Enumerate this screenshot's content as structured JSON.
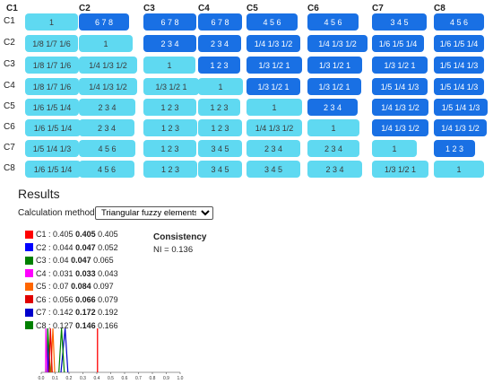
{
  "matrix": {
    "columns": [
      "C1",
      "C2",
      "C3",
      "C4",
      "C5",
      "C6",
      "C7",
      "C8"
    ],
    "rows": [
      "C1",
      "C2",
      "C3",
      "C4",
      "C5",
      "C6",
      "C7",
      "C8"
    ],
    "cells": [
      [
        {
          "t": "1",
          "s": "l"
        },
        {
          "t": "6 7 8",
          "s": "d"
        },
        {
          "t": "6 7 8",
          "s": "d"
        },
        {
          "t": "6 7 8",
          "s": "d"
        },
        {
          "t": "4 5 6",
          "s": "d"
        },
        {
          "t": "4 5 6",
          "s": "d"
        },
        {
          "t": "3 4 5",
          "s": "d"
        },
        {
          "t": "4 5 6",
          "s": "d"
        }
      ],
      [
        {
          "t": "1/8 1/7 1/6",
          "s": "l"
        },
        {
          "t": "1",
          "s": "l"
        },
        {
          "t": "2 3 4",
          "s": "d"
        },
        {
          "t": "2 3 4",
          "s": "d"
        },
        {
          "t": "1/4 1/3 1/2",
          "s": "d"
        },
        {
          "t": "1/4 1/3 1/2",
          "s": "d"
        },
        {
          "t": "1/6 1/5 1/4",
          "s": "d"
        },
        {
          "t": "1/6 1/5 1/4",
          "s": "d"
        }
      ],
      [
        {
          "t": "1/8 1/7 1/6",
          "s": "l"
        },
        {
          "t": "1/4 1/3 1/2",
          "s": "l"
        },
        {
          "t": "1",
          "s": "l"
        },
        {
          "t": "1 2 3",
          "s": "d"
        },
        {
          "t": "1/3 1/2 1",
          "s": "d"
        },
        {
          "t": "1/3 1/2 1",
          "s": "d"
        },
        {
          "t": "1/3 1/2 1",
          "s": "d"
        },
        {
          "t": "1/5 1/4 1/3",
          "s": "d"
        }
      ],
      [
        {
          "t": "1/8 1/7 1/6",
          "s": "l"
        },
        {
          "t": "1/4 1/3 1/2",
          "s": "l"
        },
        {
          "t": "1/3 1/2 1",
          "s": "l"
        },
        {
          "t": "1",
          "s": "l"
        },
        {
          "t": "1/3 1/2 1",
          "s": "d"
        },
        {
          "t": "1/3 1/2 1",
          "s": "d"
        },
        {
          "t": "1/5 1/4 1/3",
          "s": "d"
        },
        {
          "t": "1/5 1/4 1/3",
          "s": "d"
        }
      ],
      [
        {
          "t": "1/6 1/5 1/4",
          "s": "l"
        },
        {
          "t": "2 3 4",
          "s": "l"
        },
        {
          "t": "1 2 3",
          "s": "l"
        },
        {
          "t": "1 2 3",
          "s": "l"
        },
        {
          "t": "1",
          "s": "l"
        },
        {
          "t": "2 3 4",
          "s": "d"
        },
        {
          "t": "1/4 1/3 1/2",
          "s": "d"
        },
        {
          "t": "1/5 1/4 1/3",
          "s": "d"
        }
      ],
      [
        {
          "t": "1/6 1/5 1/4",
          "s": "l"
        },
        {
          "t": "2 3 4",
          "s": "l"
        },
        {
          "t": "1 2 3",
          "s": "l"
        },
        {
          "t": "1 2 3",
          "s": "l"
        },
        {
          "t": "1/4 1/3 1/2",
          "s": "l"
        },
        {
          "t": "1",
          "s": "l"
        },
        {
          "t": "1/4 1/3 1/2",
          "s": "d"
        },
        {
          "t": "1/4 1/3 1/2",
          "s": "d"
        }
      ],
      [
        {
          "t": "1/5 1/4 1/3",
          "s": "l"
        },
        {
          "t": "4 5 6",
          "s": "l"
        },
        {
          "t": "1 2 3",
          "s": "l"
        },
        {
          "t": "3 4 5",
          "s": "l"
        },
        {
          "t": "2 3 4",
          "s": "l"
        },
        {
          "t": "2 3 4",
          "s": "l"
        },
        {
          "t": "1",
          "s": "l"
        },
        {
          "t": "1 2 3",
          "s": "d"
        }
      ],
      [
        {
          "t": "1/6 1/5 1/4",
          "s": "l"
        },
        {
          "t": "4 5 6",
          "s": "l"
        },
        {
          "t": "1 2 3",
          "s": "l"
        },
        {
          "t": "3 4 5",
          "s": "l"
        },
        {
          "t": "3 4 5",
          "s": "l"
        },
        {
          "t": "2 3 4",
          "s": "l"
        },
        {
          "t": "1/3 1/2 1",
          "s": "l"
        },
        {
          "t": "1",
          "s": "l"
        }
      ]
    ]
  },
  "results": {
    "title": "Results",
    "calc_label": "Calculation method:",
    "calc_value": "Triangular fuzzy elements",
    "weights": [
      {
        "name": "C1",
        "color": "#ff0000",
        "l": "0.405",
        "m": "0.405",
        "u": "0.405"
      },
      {
        "name": "C2",
        "color": "#0000ff",
        "l": "0.044",
        "m": "0.047",
        "u": "0.052"
      },
      {
        "name": "C3",
        "color": "#008000",
        "l": "0.04",
        "m": "0.047",
        "u": "0.065"
      },
      {
        "name": "C4",
        "color": "#ff00ff",
        "l": "0.031",
        "m": "0.033",
        "u": "0.043"
      },
      {
        "name": "C5",
        "color": "#ff6600",
        "l": "0.07",
        "m": "0.084",
        "u": "0.097"
      },
      {
        "name": "C6",
        "color": "#e00000",
        "l": "0.056",
        "m": "0.066",
        "u": "0.079"
      },
      {
        "name": "C7",
        "color": "#0000cc",
        "l": "0.142",
        "m": "0.172",
        "u": "0.192"
      },
      {
        "name": "C8",
        "color": "#008000",
        "l": "0.127",
        "m": "0.146",
        "u": "0.166"
      }
    ],
    "consistency_title": "Consistency",
    "consistency_value": "NI = 0.136"
  },
  "chart_data": {
    "type": "line",
    "xlim": [
      0,
      1
    ],
    "ticks": [
      "0.0",
      "0.1",
      "0.2",
      "0.3",
      "0.4",
      "0.5",
      "0.6",
      "0.7",
      "0.8",
      "0.9",
      "1.0"
    ],
    "series": [
      {
        "name": "C1",
        "color": "#ff0000",
        "points": [
          0.405,
          0.405,
          0.405
        ]
      },
      {
        "name": "C2",
        "color": "#0000ff",
        "points": [
          0.044,
          0.047,
          0.052
        ]
      },
      {
        "name": "C3",
        "color": "#008000",
        "points": [
          0.04,
          0.047,
          0.065
        ]
      },
      {
        "name": "C4",
        "color": "#ff00ff",
        "points": [
          0.031,
          0.033,
          0.043
        ]
      },
      {
        "name": "C5",
        "color": "#ff6600",
        "points": [
          0.07,
          0.084,
          0.097
        ]
      },
      {
        "name": "C6",
        "color": "#e00000",
        "points": [
          0.056,
          0.066,
          0.079
        ]
      },
      {
        "name": "C7",
        "color": "#0000cc",
        "points": [
          0.142,
          0.172,
          0.192
        ]
      },
      {
        "name": "C8",
        "color": "#008000",
        "points": [
          0.127,
          0.146,
          0.166
        ]
      }
    ]
  }
}
